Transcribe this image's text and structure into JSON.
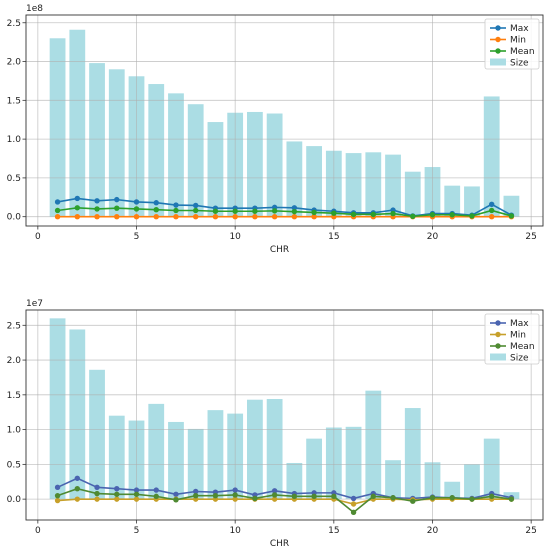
{
  "chart_data": [
    {
      "type": "bar+line",
      "x_label": "CHR",
      "y_offset_label": "1e8",
      "x_ticks": [
        0,
        5,
        10,
        15,
        20,
        25
      ],
      "y_ticks": [
        0.0,
        0.5,
        1.0,
        1.5,
        2.0,
        2.5
      ],
      "y_tick_labels": [
        "0.0",
        "0.5",
        "1.0",
        "1.5",
        "2.0",
        "2.5"
      ],
      "xlim": [
        -0.6,
        25.6
      ],
      "ylim": [
        -0.12,
        2.6
      ],
      "grid": true,
      "legend_position": "top-right",
      "categories": [
        1,
        2,
        3,
        4,
        5,
        6,
        7,
        8,
        9,
        10,
        11,
        12,
        13,
        14,
        15,
        16,
        17,
        18,
        19,
        20,
        21,
        22,
        23,
        24
      ],
      "series": [
        {
          "name": "Max",
          "kind": "line",
          "color": "#1f77b4",
          "values": [
            0.19,
            0.235,
            0.205,
            0.22,
            0.19,
            0.18,
            0.15,
            0.145,
            0.11,
            0.11,
            0.11,
            0.12,
            0.115,
            0.085,
            0.07,
            0.05,
            0.05,
            0.085,
            0.01,
            0.04,
            0.04,
            0.02,
            0.16,
            0.02
          ]
        },
        {
          "name": "Min",
          "kind": "line",
          "color": "#ff7f0e",
          "values": [
            0.0,
            0.0,
            0.0,
            0.0,
            0.0,
            0.0,
            0.0,
            0.0,
            0.0,
            0.0,
            0.0,
            0.0,
            0.0,
            0.0,
            0.0,
            0.0,
            0.0,
            0.0,
            0.0,
            0.0,
            0.0,
            0.0,
            0.0,
            0.0
          ]
        },
        {
          "name": "Mean",
          "kind": "line",
          "color": "#2ca02c",
          "values": [
            0.08,
            0.115,
            0.1,
            0.11,
            0.1,
            0.09,
            0.08,
            0.08,
            0.07,
            0.07,
            0.07,
            0.075,
            0.065,
            0.055,
            0.045,
            0.03,
            0.03,
            0.04,
            0.005,
            0.025,
            0.025,
            0.01,
            0.08,
            0.01
          ]
        },
        {
          "name": "Size",
          "kind": "bar",
          "color": "#abdde4",
          "values": [
            2.3,
            2.41,
            1.98,
            1.9,
            1.81,
            1.71,
            1.59,
            1.45,
            1.22,
            1.34,
            1.35,
            1.33,
            0.97,
            0.91,
            0.85,
            0.82,
            0.83,
            0.8,
            0.58,
            0.64,
            0.4,
            0.39,
            1.55,
            0.27
          ]
        }
      ]
    },
    {
      "type": "bar+line",
      "x_label": "CHR",
      "y_offset_label": "1e7",
      "x_ticks": [
        0,
        5,
        10,
        15,
        20,
        25
      ],
      "y_ticks": [
        0.0,
        0.5,
        1.0,
        1.5,
        2.0,
        2.5
      ],
      "y_tick_labels": [
        "0.0",
        "0.5",
        "1.0",
        "1.5",
        "2.0",
        "2.5"
      ],
      "xlim": [
        -0.6,
        25.6
      ],
      "ylim": [
        -0.3,
        2.72
      ],
      "grid": true,
      "legend_position": "top-right",
      "categories": [
        1,
        2,
        3,
        4,
        5,
        6,
        7,
        8,
        9,
        10,
        11,
        12,
        13,
        14,
        15,
        16,
        17,
        18,
        19,
        20,
        21,
        22,
        23,
        24
      ],
      "series": [
        {
          "name": "Max",
          "kind": "line",
          "color": "#4a64b0",
          "values": [
            0.17,
            0.3,
            0.17,
            0.15,
            0.13,
            0.13,
            0.07,
            0.11,
            0.1,
            0.13,
            0.06,
            0.12,
            0.08,
            0.09,
            0.09,
            0.01,
            0.08,
            0.02,
            0.01,
            0.03,
            0.02,
            0.01,
            0.08,
            0.02
          ]
        },
        {
          "name": "Min",
          "kind": "line",
          "color": "#c7a02a",
          "values": [
            -0.02,
            0.0,
            0.0,
            0.0,
            0.0,
            0.0,
            0.0,
            0.0,
            0.0,
            0.0,
            0.0,
            0.0,
            0.0,
            0.0,
            0.0,
            -0.07,
            0.0,
            0.0,
            -0.01,
            0.0,
            0.0,
            0.0,
            0.0,
            0.0
          ]
        },
        {
          "name": "Mean",
          "kind": "line",
          "color": "#4f8a32",
          "values": [
            0.05,
            0.15,
            0.08,
            0.07,
            0.07,
            0.04,
            -0.01,
            0.05,
            0.05,
            0.06,
            0.01,
            0.06,
            0.04,
            0.04,
            0.04,
            -0.19,
            0.04,
            0.02,
            -0.03,
            0.02,
            0.02,
            0.0,
            0.04,
            0.0
          ]
        },
        {
          "name": "Size",
          "kind": "bar",
          "color": "#abdde4",
          "values": [
            2.6,
            2.44,
            1.86,
            1.2,
            1.13,
            1.37,
            1.11,
            1.01,
            1.28,
            1.23,
            1.43,
            1.44,
            0.52,
            0.87,
            1.03,
            1.04,
            1.56,
            0.56,
            1.31,
            0.53,
            0.25,
            0.5,
            0.87,
            0.1
          ]
        }
      ]
    }
  ]
}
